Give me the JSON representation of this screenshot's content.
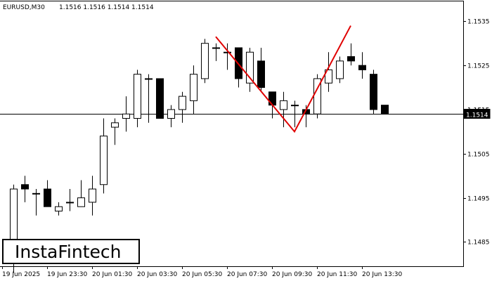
{
  "header": {
    "symbol": "EURUSD,M30",
    "ohlc": "1.1516 1.1516 1.1514 1.1514"
  },
  "logo": {
    "text": "InstaFintech"
  },
  "colors": {
    "pattern_line": "#e00000",
    "bull_body": "#ffffff",
    "bear_body": "#000000",
    "price_line": "#000000"
  },
  "chart_data": {
    "type": "candlestick",
    "title": "EURUSD,M30",
    "ylim": [
      1.14795,
      1.15395
    ],
    "y_ticks": [
      "1.1535",
      "1.1525",
      "1.1515",
      "1.1505",
      "1.1495",
      "1.1485"
    ],
    "x_ticks": [
      "19 Jun 2025",
      "19 Jun 23:30",
      "20 Jun 01:30",
      "20 Jun 03:30",
      "20 Jun 05:30",
      "20 Jun 07:30",
      "20 Jun 09:30",
      "20 Jun 11:30",
      "20 Jun 13:30"
    ],
    "current_price": 1.1514,
    "current_price_label": "1.1514",
    "hidden_tick_label": "1.1515",
    "candles": [
      {
        "o": 1.1482,
        "h": 1.1498,
        "l": 1.1478,
        "c": 1.1497
      },
      {
        "o": 1.1498,
        "h": 1.15,
        "l": 1.1494,
        "c": 1.1497
      },
      {
        "o": 1.1496,
        "h": 1.1497,
        "l": 1.1491,
        "c": 1.1496
      },
      {
        "o": 1.1497,
        "h": 1.1499,
        "l": 1.1493,
        "c": 1.1493
      },
      {
        "o": 1.1492,
        "h": 1.1494,
        "l": 1.1491,
        "c": 1.1493
      },
      {
        "o": 1.1494,
        "h": 1.1497,
        "l": 1.1492,
        "c": 1.1494
      },
      {
        "o": 1.1493,
        "h": 1.1499,
        "l": 1.1493,
        "c": 1.1495
      },
      {
        "o": 1.1494,
        "h": 1.15,
        "l": 1.1491,
        "c": 1.1497
      },
      {
        "o": 1.1498,
        "h": 1.1513,
        "l": 1.1496,
        "c": 1.1509
      },
      {
        "o": 1.1511,
        "h": 1.1513,
        "l": 1.1507,
        "c": 1.1512
      },
      {
        "o": 1.1513,
        "h": 1.1518,
        "l": 1.151,
        "c": 1.1514
      },
      {
        "o": 1.1513,
        "h": 1.1524,
        "l": 1.1511,
        "c": 1.1523
      },
      {
        "o": 1.1522,
        "h": 1.1523,
        "l": 1.1512,
        "c": 1.1522
      },
      {
        "o": 1.1522,
        "h": 1.1522,
        "l": 1.1513,
        "c": 1.1513
      },
      {
        "o": 1.1513,
        "h": 1.1516,
        "l": 1.1511,
        "c": 1.1515
      },
      {
        "o": 1.1515,
        "h": 1.1519,
        "l": 1.1512,
        "c": 1.1518
      },
      {
        "o": 1.1517,
        "h": 1.1525,
        "l": 1.1514,
        "c": 1.1523
      },
      {
        "o": 1.1522,
        "h": 1.1531,
        "l": 1.1521,
        "c": 1.153
      },
      {
        "o": 1.1529,
        "h": 1.153,
        "l": 1.1526,
        "c": 1.1529
      },
      {
        "o": 1.1528,
        "h": 1.153,
        "l": 1.1524,
        "c": 1.1528
      },
      {
        "o": 1.1529,
        "h": 1.1529,
        "l": 1.152,
        "c": 1.1522
      },
      {
        "o": 1.1521,
        "h": 1.1529,
        "l": 1.1519,
        "c": 1.1528
      },
      {
        "o": 1.1526,
        "h": 1.1529,
        "l": 1.1519,
        "c": 1.152
      },
      {
        "o": 1.1519,
        "h": 1.1519,
        "l": 1.1513,
        "c": 1.1516
      },
      {
        "o": 1.1515,
        "h": 1.1519,
        "l": 1.1511,
        "c": 1.1517
      },
      {
        "o": 1.1516,
        "h": 1.1517,
        "l": 1.1511,
        "c": 1.1516
      },
      {
        "o": 1.1515,
        "h": 1.1516,
        "l": 1.1511,
        "c": 1.1514
      },
      {
        "o": 1.1514,
        "h": 1.1523,
        "l": 1.1513,
        "c": 1.1522
      },
      {
        "o": 1.1521,
        "h": 1.1528,
        "l": 1.1519,
        "c": 1.1524
      },
      {
        "o": 1.1522,
        "h": 1.1527,
        "l": 1.1521,
        "c": 1.1526
      },
      {
        "o": 1.1527,
        "h": 1.153,
        "l": 1.1525,
        "c": 1.1526
      },
      {
        "o": 1.1525,
        "h": 1.1528,
        "l": 1.1522,
        "c": 1.1524
      },
      {
        "o": 1.1523,
        "h": 1.1524,
        "l": 1.1514,
        "c": 1.1515
      },
      {
        "o": 1.1516,
        "h": 1.1516,
        "l": 1.1514,
        "c": 1.1514
      }
    ],
    "pattern": {
      "name": "double top",
      "points": [
        {
          "candle": 18,
          "price": 1.15315
        },
        {
          "candle": 25,
          "price": 1.151
        },
        {
          "candle": 30,
          "price": 1.1534
        }
      ]
    }
  }
}
